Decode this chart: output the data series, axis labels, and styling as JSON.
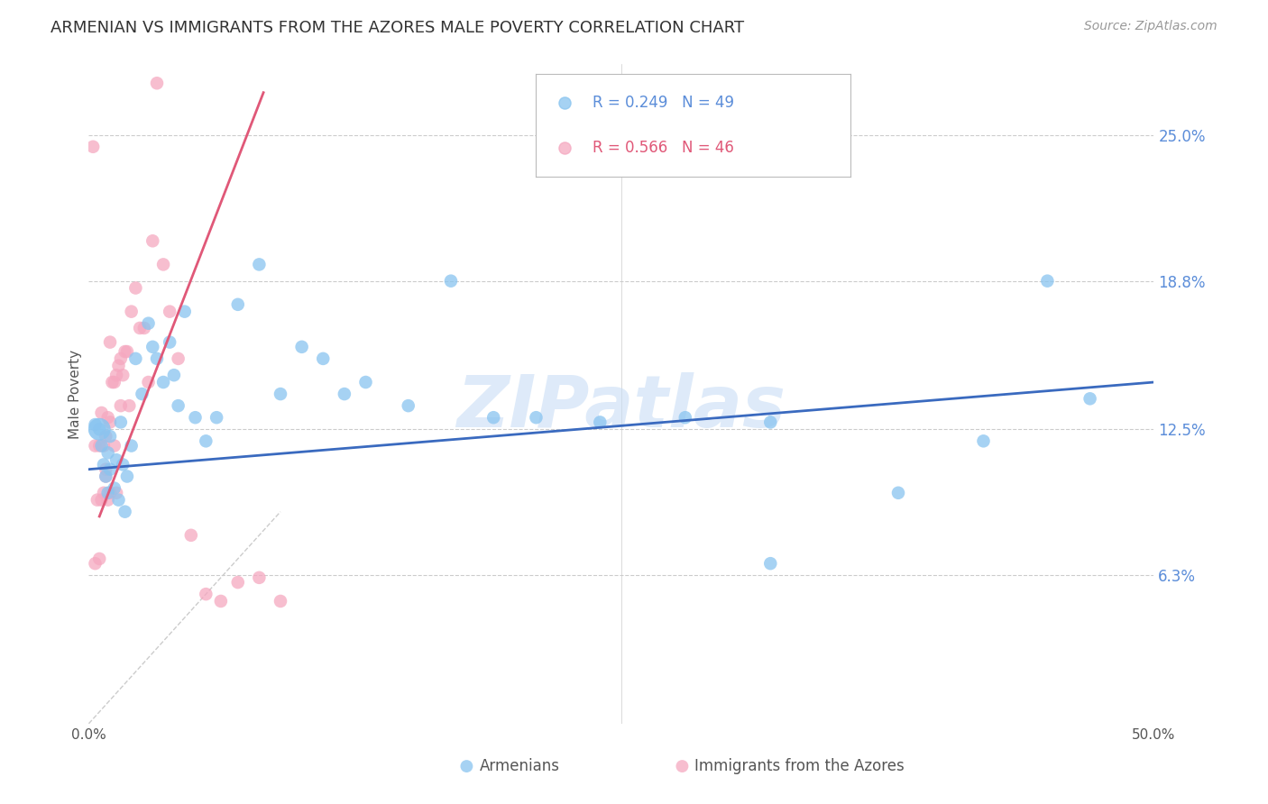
{
  "title": "ARMENIAN VS IMMIGRANTS FROM THE AZORES MALE POVERTY CORRELATION CHART",
  "source": "Source: ZipAtlas.com",
  "ylabel": "Male Poverty",
  "right_yticks": [
    "25.0%",
    "18.8%",
    "12.5%",
    "6.3%"
  ],
  "right_ytick_vals": [
    0.25,
    0.188,
    0.125,
    0.063
  ],
  "xlim": [
    0.0,
    0.5
  ],
  "ylim": [
    0.0,
    0.28
  ],
  "legend1_r": "R = 0.249",
  "legend1_n": "N = 49",
  "legend2_r": "R = 0.566",
  "legend2_n": "N = 46",
  "blue_color": "#89c4f0",
  "pink_color": "#f5a8c0",
  "line_blue": "#3a6abf",
  "line_pink": "#e05878",
  "watermark": "ZIPatlas",
  "blue_scatter_x": [
    0.003,
    0.005,
    0.006,
    0.007,
    0.008,
    0.009,
    0.009,
    0.01,
    0.01,
    0.012,
    0.013,
    0.014,
    0.015,
    0.016,
    0.017,
    0.018,
    0.02,
    0.022,
    0.025,
    0.028,
    0.03,
    0.032,
    0.035,
    0.038,
    0.04,
    0.042,
    0.045,
    0.05,
    0.055,
    0.06,
    0.07,
    0.08,
    0.09,
    0.1,
    0.11,
    0.12,
    0.13,
    0.15,
    0.17,
    0.19,
    0.21,
    0.24,
    0.28,
    0.32,
    0.38,
    0.42,
    0.32,
    0.45,
    0.47
  ],
  "blue_scatter_y": [
    0.127,
    0.125,
    0.118,
    0.11,
    0.105,
    0.098,
    0.115,
    0.108,
    0.122,
    0.1,
    0.112,
    0.095,
    0.128,
    0.11,
    0.09,
    0.105,
    0.118,
    0.155,
    0.14,
    0.17,
    0.16,
    0.155,
    0.145,
    0.162,
    0.148,
    0.135,
    0.175,
    0.13,
    0.12,
    0.13,
    0.178,
    0.195,
    0.14,
    0.16,
    0.155,
    0.14,
    0.145,
    0.135,
    0.188,
    0.13,
    0.13,
    0.128,
    0.13,
    0.068,
    0.098,
    0.12,
    0.128,
    0.188,
    0.138
  ],
  "pink_scatter_x": [
    0.002,
    0.003,
    0.003,
    0.004,
    0.005,
    0.005,
    0.006,
    0.006,
    0.007,
    0.007,
    0.008,
    0.008,
    0.008,
    0.009,
    0.009,
    0.01,
    0.01,
    0.011,
    0.012,
    0.012,
    0.013,
    0.013,
    0.014,
    0.015,
    0.015,
    0.016,
    0.017,
    0.018,
    0.019,
    0.02,
    0.022,
    0.024,
    0.026,
    0.028,
    0.03,
    0.032,
    0.035,
    0.038,
    0.042,
    0.048,
    0.055,
    0.062,
    0.07,
    0.08,
    0.09,
    0.01
  ],
  "pink_scatter_y": [
    0.245,
    0.118,
    0.068,
    0.095,
    0.118,
    0.07,
    0.132,
    0.095,
    0.118,
    0.098,
    0.122,
    0.108,
    0.105,
    0.13,
    0.095,
    0.128,
    0.098,
    0.145,
    0.145,
    0.118,
    0.148,
    0.098,
    0.152,
    0.155,
    0.135,
    0.148,
    0.158,
    0.158,
    0.135,
    0.175,
    0.185,
    0.168,
    0.168,
    0.145,
    0.205,
    0.272,
    0.195,
    0.175,
    0.155,
    0.08,
    0.055,
    0.052,
    0.06,
    0.062,
    0.052,
    0.162
  ],
  "blue_line_x": [
    0.0,
    0.5
  ],
  "blue_line_y": [
    0.108,
    0.145
  ],
  "pink_line_x": [
    0.005,
    0.082
  ],
  "pink_line_y": [
    0.088,
    0.268
  ],
  "diag_line_x": [
    0.0,
    0.09
  ],
  "diag_line_y": [
    0.0,
    0.09
  ],
  "grid_color": "#cccccc",
  "background_color": "#ffffff"
}
